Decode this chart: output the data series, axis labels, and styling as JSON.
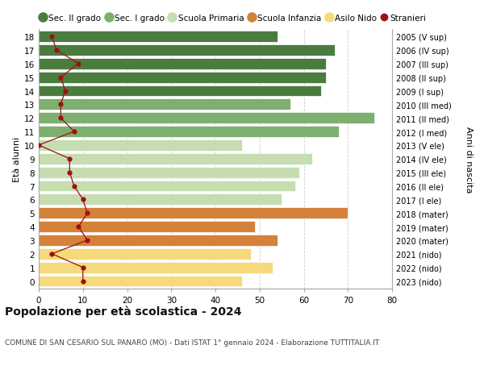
{
  "ages": [
    18,
    17,
    16,
    15,
    14,
    13,
    12,
    11,
    10,
    9,
    8,
    7,
    6,
    5,
    4,
    3,
    2,
    1,
    0
  ],
  "right_labels": [
    "2005 (V sup)",
    "2006 (IV sup)",
    "2007 (III sup)",
    "2008 (II sup)",
    "2009 (I sup)",
    "2010 (III med)",
    "2011 (II med)",
    "2012 (I med)",
    "2013 (V ele)",
    "2014 (IV ele)",
    "2015 (III ele)",
    "2016 (II ele)",
    "2017 (I ele)",
    "2018 (mater)",
    "2019 (mater)",
    "2020 (mater)",
    "2021 (nido)",
    "2022 (nido)",
    "2023 (nido)"
  ],
  "bar_values": [
    54,
    67,
    65,
    65,
    64,
    57,
    76,
    68,
    46,
    62,
    59,
    58,
    55,
    70,
    49,
    54,
    48,
    53,
    46
  ],
  "bar_colors": [
    "#4a7c3f",
    "#4a7c3f",
    "#4a7c3f",
    "#4a7c3f",
    "#4a7c3f",
    "#7daf6e",
    "#7daf6e",
    "#7daf6e",
    "#c5ddb0",
    "#c5ddb0",
    "#c5ddb0",
    "#c5ddb0",
    "#c5ddb0",
    "#d4813a",
    "#d4813a",
    "#d4813a",
    "#f5d97a",
    "#f5d97a",
    "#f5d97a"
  ],
  "stranieri_values": [
    3,
    4,
    9,
    5,
    6,
    5,
    5,
    8,
    0,
    7,
    7,
    8,
    10,
    11,
    9,
    11,
    3,
    10,
    10
  ],
  "xlim": [
    0,
    80
  ],
  "ylabel_left": "Età alunni",
  "ylabel_right": "Anni di nascita",
  "title": "Popolazione per età scolastica - 2024",
  "subtitle": "COMUNE DI SAN CESARIO SUL PANARO (MO) - Dati ISTAT 1° gennaio 2024 - Elaborazione TUTTITALIA.IT",
  "legend_items": [
    {
      "label": "Sec. II grado",
      "color": "#4a7c3f",
      "type": "circle"
    },
    {
      "label": "Sec. I grado",
      "color": "#7daf6e",
      "type": "circle"
    },
    {
      "label": "Scuola Primaria",
      "color": "#c5ddb0",
      "type": "circle"
    },
    {
      "label": "Scuola Infanzia",
      "color": "#d4813a",
      "type": "circle"
    },
    {
      "label": "Asilo Nido",
      "color": "#f5d97a",
      "type": "circle"
    },
    {
      "label": "Stranieri",
      "color": "#a01010",
      "type": "dot"
    }
  ],
  "bar_height": 0.82,
  "grid_color": "#cccccc",
  "bg_color": "#ffffff",
  "stranieri_line_color": "#a01010",
  "stranieri_dot_color": "#a01010"
}
